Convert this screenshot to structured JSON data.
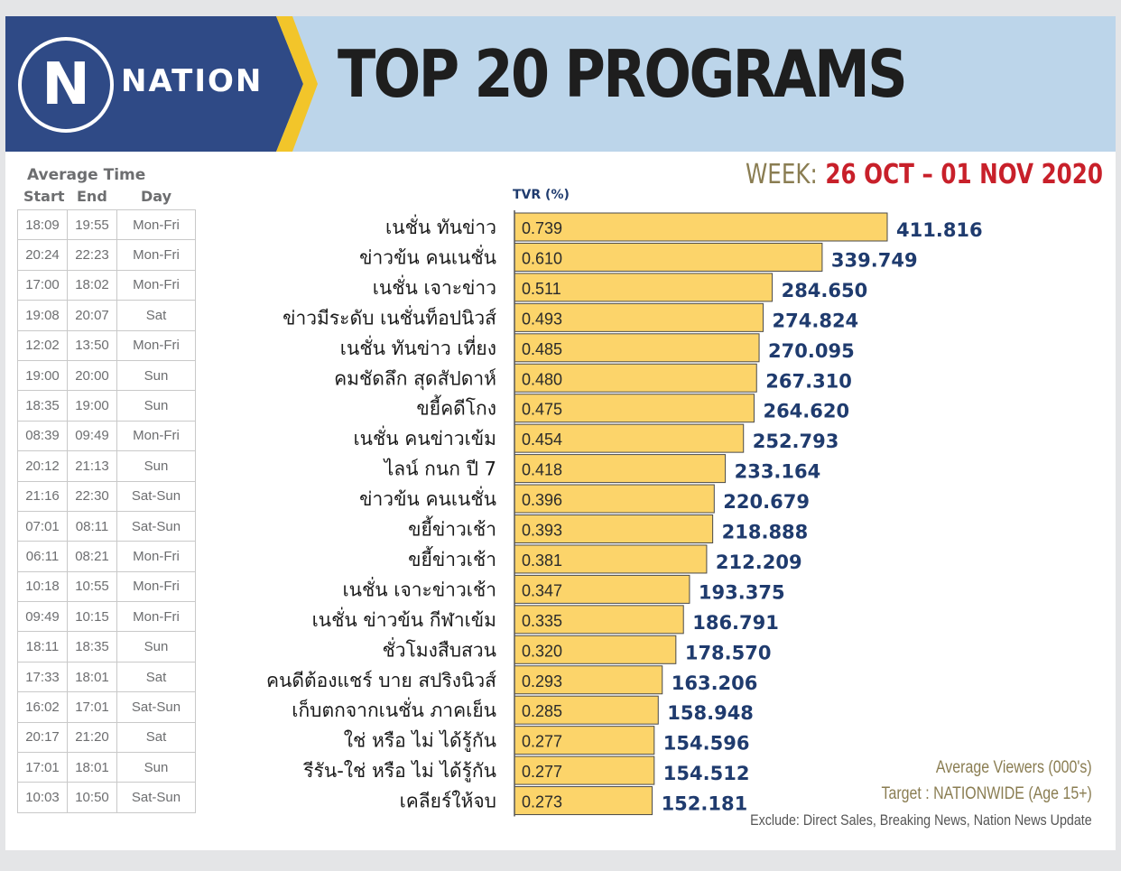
{
  "brand": {
    "logo_letter": "N",
    "logo_word": "NATION"
  },
  "title": "TOP 20 PROGRAMS",
  "week": {
    "label": "WEEK:",
    "value": "26 OCT – 01 NOV 2020"
  },
  "time_table": {
    "group_label": "Average Time",
    "headers": [
      "Start",
      "End",
      "Day"
    ],
    "rows": [
      [
        "18:09",
        "19:55",
        "Mon-Fri"
      ],
      [
        "20:24",
        "22:23",
        "Mon-Fri"
      ],
      [
        "17:00",
        "18:02",
        "Mon-Fri"
      ],
      [
        "19:08",
        "20:07",
        "Sat"
      ],
      [
        "12:02",
        "13:50",
        "Mon-Fri"
      ],
      [
        "19:00",
        "20:00",
        "Sun"
      ],
      [
        "18:35",
        "19:00",
        "Sun"
      ],
      [
        "08:39",
        "09:49",
        "Mon-Fri"
      ],
      [
        "20:12",
        "21:13",
        "Sun"
      ],
      [
        "21:16",
        "22:30",
        "Sat-Sun"
      ],
      [
        "07:01",
        "08:11",
        "Sat-Sun"
      ],
      [
        "06:11",
        "08:21",
        "Mon-Fri"
      ],
      [
        "10:18",
        "10:55",
        "Mon-Fri"
      ],
      [
        "09:49",
        "10:15",
        "Mon-Fri"
      ],
      [
        "18:11",
        "18:35",
        "Sun"
      ],
      [
        "17:33",
        "18:01",
        "Sat"
      ],
      [
        "16:02",
        "17:01",
        "Sat-Sun"
      ],
      [
        "20:17",
        "21:20",
        "Sat"
      ],
      [
        "17:01",
        "18:01",
        "Sun"
      ],
      [
        "10:03",
        "10:50",
        "Sat-Sun"
      ]
    ]
  },
  "chart_data": {
    "type": "bar",
    "orientation": "horizontal",
    "value_axis_label": "TVR (%)",
    "categories": [
      "เนชั่น ทันข่าว",
      "ข่าวข้น คนเนชั่น",
      "เนชั่น เจาะข่าว",
      "ข่าวมีระดับ เนชั่นท็อปนิวส์",
      "เนชั่น ทันข่าว เที่ยง",
      "คมชัดลึก สุดสัปดาห์",
      "ขยี้คดีโกง",
      "เนชั่น คนข่าวเข้ม",
      "ไลน์ กนก ปี 7",
      "ข่าวข้น คนเนชั่น",
      "ขยี้ข่าวเช้า",
      "ขยี้ข่าวเช้า",
      "เนชั่น เจาะข่าวเช้า",
      "เนชั่น ข่าวข้น กีฬาเข้ม",
      "ชั่วโมงสืบสวน",
      "คนดีต้องแชร์ บาย สปริงนิวส์",
      "เก็บตกจากเนชั่น ภาคเย็น",
      "ใช่ หรือ ไม่ ได้รู้กัน",
      "รีรัน-ใช่ หรือ ไม่ ได้รู้กัน",
      "เคลียร์ให้จบ"
    ],
    "tvr_labels": [
      "0.739",
      "0.610",
      "0.511",
      "0.493",
      "0.485",
      "0.480",
      "0.475",
      "0.454",
      "0.418",
      "0.396",
      "0.393",
      "0.381",
      "0.347",
      "0.335",
      "0.320",
      "0.293",
      "0.285",
      "0.277",
      "0.277",
      "0.273"
    ],
    "tvr": [
      0.739,
      0.61,
      0.511,
      0.493,
      0.485,
      0.48,
      0.475,
      0.454,
      0.418,
      0.396,
      0.393,
      0.381,
      0.347,
      0.335,
      0.32,
      0.293,
      0.285,
      0.277,
      0.277,
      0.273
    ],
    "viewers_labels": [
      "411.816",
      "339.749",
      "284.650",
      "274.824",
      "270.095",
      "267.310",
      "264.620",
      "252.793",
      "233.164",
      "220.679",
      "218.888",
      "212.209",
      "193.375",
      "186.791",
      "178.570",
      "163.206",
      "158.948",
      "154.596",
      "154.512",
      "152.181"
    ],
    "viewers": [
      411.816,
      339.749,
      284.65,
      274.824,
      270.095,
      267.31,
      264.62,
      252.793,
      233.164,
      220.679,
      218.888,
      212.209,
      193.375,
      186.791,
      178.57,
      163.206,
      158.948,
      154.596,
      154.512,
      152.181
    ],
    "bar_color": "#fcd46a",
    "value_color": "#1f3b6e"
  },
  "footer": {
    "viewers_note": "Average Viewers (000's)",
    "target": "Target : NATIONWIDE (Age 15+)",
    "exclude": "Exclude: Direct Sales, Breaking News, Nation News Update"
  },
  "colors": {
    "banner_dark": "#2f4a86",
    "banner_light": "#bcd5ea",
    "stripe": "#f2c52a",
    "week_red": "#c8202a"
  }
}
